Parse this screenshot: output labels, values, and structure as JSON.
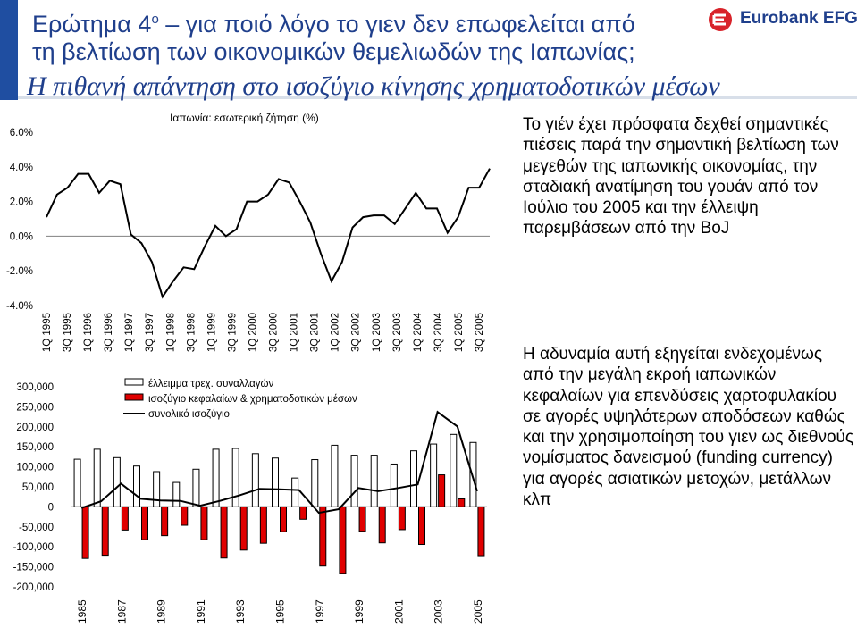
{
  "header": {
    "question_prefix": "Ερώτημα 4",
    "question_sup": "ο",
    "question_line1_rest": " – για ποιό λόγο το γιεν δεν επωφελείται από",
    "question_line2": "τη βελτίωση των οικονομικών θεμελιωδών της Ιαπωνίας;",
    "subtitle": "Η πιθανή απάντηση στο ισοζύγιο κίνησης χρηματοδοτικών μέσων",
    "logo_text": "Eurobank EFG",
    "logo_color": "#d8232a",
    "brand_color": "#1f3f8c"
  },
  "paragraphs": {
    "p1": "Το γιέν έχει πρόσφατα δεχθεί σημαντικές πιέσεις παρά την σημαντική βελτίωση των μεγεθών της ιαπωνικής οικονομίας, την σταδιακή ανατίμηση του γουάν από τον Ιούλιο του 2005 και την έλλειψη παρεμβάσεων από την BoJ",
    "p2": "Η αδυναμία αυτή εξηγείται ενδεχομένως από την μεγάλη εκροή ιαπωνικών κεφαλαίων για επενδύσεις χαρτοφυλακίου σε αγορές υψηλότερων αποδόσεων καθώς και την χρησιμοποίηση του γιεν ως διεθνούς νομίσματος δανεισμού (funding currency) για αγορές ασιατικών μετοχών, μετάλλων κλπ"
  },
  "chart_data": [
    {
      "type": "line",
      "title": "",
      "series": [
        {
          "name": "Ιαπωνία: εσωτερική ζήτηση (%)",
          "color": "#000000",
          "values": [
            1.1,
            2.4,
            2.8,
            3.6,
            3.6,
            2.5,
            3.2,
            3.0,
            0.1,
            -0.4,
            -1.5,
            -3.5,
            -2.6,
            -1.8,
            -1.9,
            -0.6,
            0.6,
            0.0,
            0.4,
            2.0,
            2.0,
            2.4,
            3.3,
            3.1,
            2.0,
            0.8,
            -1.0,
            -2.6,
            -1.5,
            0.5,
            1.1,
            1.2,
            1.2,
            0.7,
            1.6,
            2.5,
            1.6,
            1.6,
            0.2,
            1.1,
            2.8,
            2.8,
            3.9
          ]
        }
      ],
      "ylim": [
        -4.0,
        6.0
      ],
      "yticks": [
        "6.0%",
        "4.0%",
        "2.0%",
        "0.0%",
        "-2.0%",
        "-4.0%"
      ],
      "xtick_labels": [
        "1Q 1995",
        "3Q 1995",
        "1Q 1996",
        "3Q 1996",
        "1Q 1997",
        "3Q 1997",
        "1Q 1998",
        "3Q 1998",
        "1Q 1999",
        "3Q 1999",
        "1Q 2000",
        "3Q 2000",
        "1Q 2001",
        "3Q 2001",
        "1Q 2002",
        "3Q 2002",
        "1Q 2003",
        "3Q 2003",
        "1Q 2004",
        "3Q 2004",
        "1Q 2005",
        "3Q 2005"
      ]
    },
    {
      "type": "bar",
      "title": "",
      "categories": [
        "1985",
        "1986",
        "1987",
        "1988",
        "1989",
        "1990",
        "1991",
        "1992",
        "1993",
        "1994",
        "1995",
        "1996",
        "1997",
        "1998",
        "1999",
        "2000",
        "2001",
        "2002",
        "2003",
        "2004",
        "2005"
      ],
      "xtick_labels": [
        "1985",
        "1987",
        "1989",
        "1991",
        "1993",
        "1995",
        "1997",
        "1999",
        "2001",
        "2003",
        "2005"
      ],
      "series": [
        {
          "name": "έλλειμμα τρεχ. συναλλαγών",
          "kind": "bar",
          "color": "#ffffff",
          "values": [
            119000,
            144000,
            123000,
            102000,
            88000,
            61000,
            94000,
            144000,
            146000,
            133000,
            122000,
            72000,
            118000,
            154000,
            129000,
            129000,
            107000,
            140000,
            157000,
            181000,
            161000
          ]
        },
        {
          "name": "ισοζύγιο κεφαλαίων & χρηματοδοτικών μέσων",
          "kind": "bar",
          "color": "#e00000",
          "values": [
            -129000,
            -121000,
            -58000,
            -82000,
            -72000,
            -46000,
            -82000,
            -128000,
            -108000,
            -91000,
            -62000,
            -31000,
            -148000,
            -166000,
            -61000,
            -90000,
            -57000,
            -94000,
            80000,
            20000,
            -122000
          ]
        },
        {
          "name": "συνολικό ισοζύγιο",
          "kind": "line",
          "color": "#000000",
          "values": [
            -3000,
            14000,
            58000,
            20000,
            16000,
            15000,
            3000,
            15000,
            29000,
            45000,
            44000,
            42000,
            -15000,
            -6000,
            47000,
            39000,
            47000,
            56000,
            237000,
            201000,
            39000
          ]
        }
      ],
      "ylim": [
        -200000,
        300000
      ],
      "yticks": [
        "300,000",
        "250,000",
        "200,000",
        "150,000",
        "100,000",
        "50,000",
        "0",
        "-50,000",
        "-100,000",
        "-150,000",
        "-200,000"
      ]
    }
  ]
}
